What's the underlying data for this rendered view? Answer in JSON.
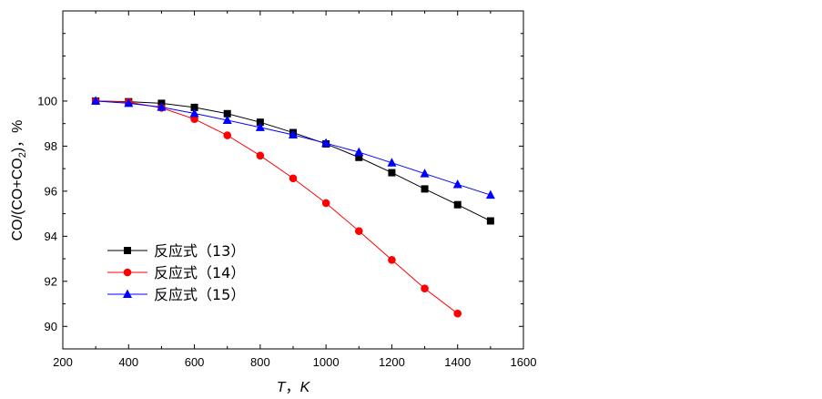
{
  "chart_data": {
    "type": "line",
    "xlabel": "T，K",
    "ylabel": "CO/(CO+CO2)，%",
    "xlim": [
      200,
      1600
    ],
    "ylim": [
      89,
      104
    ],
    "x_ticks": [
      200,
      400,
      600,
      800,
      1000,
      1200,
      1400,
      1600
    ],
    "y_ticks": [
      90,
      92,
      94,
      96,
      98,
      100
    ],
    "grid": false,
    "legend_position": "bottom-left",
    "series": [
      {
        "name": "反应式（13）",
        "color": "#000000",
        "marker": "square",
        "x": [
          300,
          400,
          500,
          600,
          700,
          800,
          900,
          1000,
          1100,
          1200,
          1300,
          1400,
          1500
        ],
        "y": [
          100.0,
          99.97,
          99.9,
          99.72,
          99.44,
          99.06,
          98.6,
          98.1,
          97.5,
          96.82,
          96.1,
          95.4,
          94.68
        ]
      },
      {
        "name": "反应式（14）",
        "color": "#ff0000",
        "marker": "circle",
        "x": [
          300,
          400,
          500,
          600,
          700,
          800,
          900,
          1000,
          1100,
          1200,
          1300,
          1400
        ],
        "y": [
          100.0,
          99.95,
          99.7,
          99.2,
          98.48,
          97.58,
          96.57,
          95.47,
          94.23,
          92.95,
          91.68,
          90.57
        ]
      },
      {
        "name": "反应式（15）",
        "color": "#0000ff",
        "marker": "triangle",
        "x": [
          300,
          400,
          500,
          600,
          700,
          800,
          900,
          1000,
          1100,
          1200,
          1300,
          1400,
          1500
        ],
        "y": [
          100.0,
          99.9,
          99.73,
          99.45,
          99.15,
          98.83,
          98.5,
          98.13,
          97.73,
          97.26,
          96.78,
          96.3,
          95.83
        ]
      }
    ]
  }
}
